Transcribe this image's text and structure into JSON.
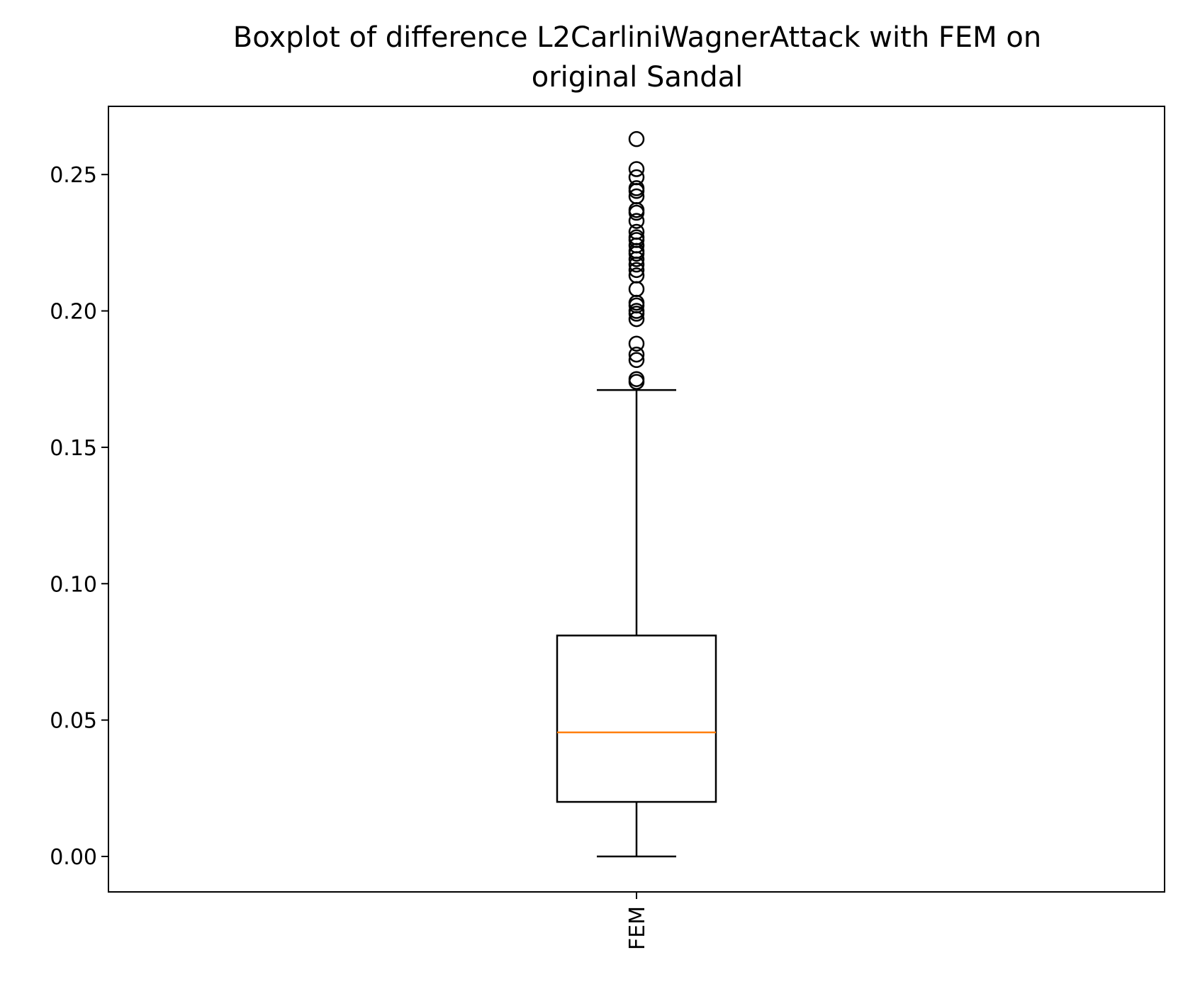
{
  "chart_data": {
    "type": "boxplot",
    "title": "Boxplot of difference L2CarliniWagnerAttack with FEM on original Sandal",
    "title_lines": [
      "Boxplot of difference L2CarliniWagnerAttack with FEM on",
      "original Sandal"
    ],
    "xlabel": "",
    "ylabel": "",
    "categories": [
      "FEM"
    ],
    "ylim": [
      -0.013,
      0.275
    ],
    "yticks": [
      0.0,
      0.05,
      0.1,
      0.15,
      0.2,
      0.25
    ],
    "ytick_labels": [
      "0.00",
      "0.05",
      "0.10",
      "0.15",
      "0.20",
      "0.25"
    ],
    "grid": false,
    "boxes": [
      {
        "category": "FEM",
        "whisker_low": 0.0,
        "q1": 0.02,
        "median": 0.0455,
        "q3": 0.081,
        "whisker_high": 0.171,
        "outliers": [
          0.174,
          0.175,
          0.182,
          0.184,
          0.188,
          0.197,
          0.199,
          0.2,
          0.202,
          0.203,
          0.208,
          0.213,
          0.215,
          0.217,
          0.219,
          0.221,
          0.222,
          0.224,
          0.226,
          0.227,
          0.229,
          0.233,
          0.236,
          0.237,
          0.242,
          0.244,
          0.245,
          0.249,
          0.252,
          0.263
        ]
      }
    ],
    "colors": {
      "box": "#000000",
      "median": "#ff7f0e",
      "outlier": "#000000"
    }
  }
}
